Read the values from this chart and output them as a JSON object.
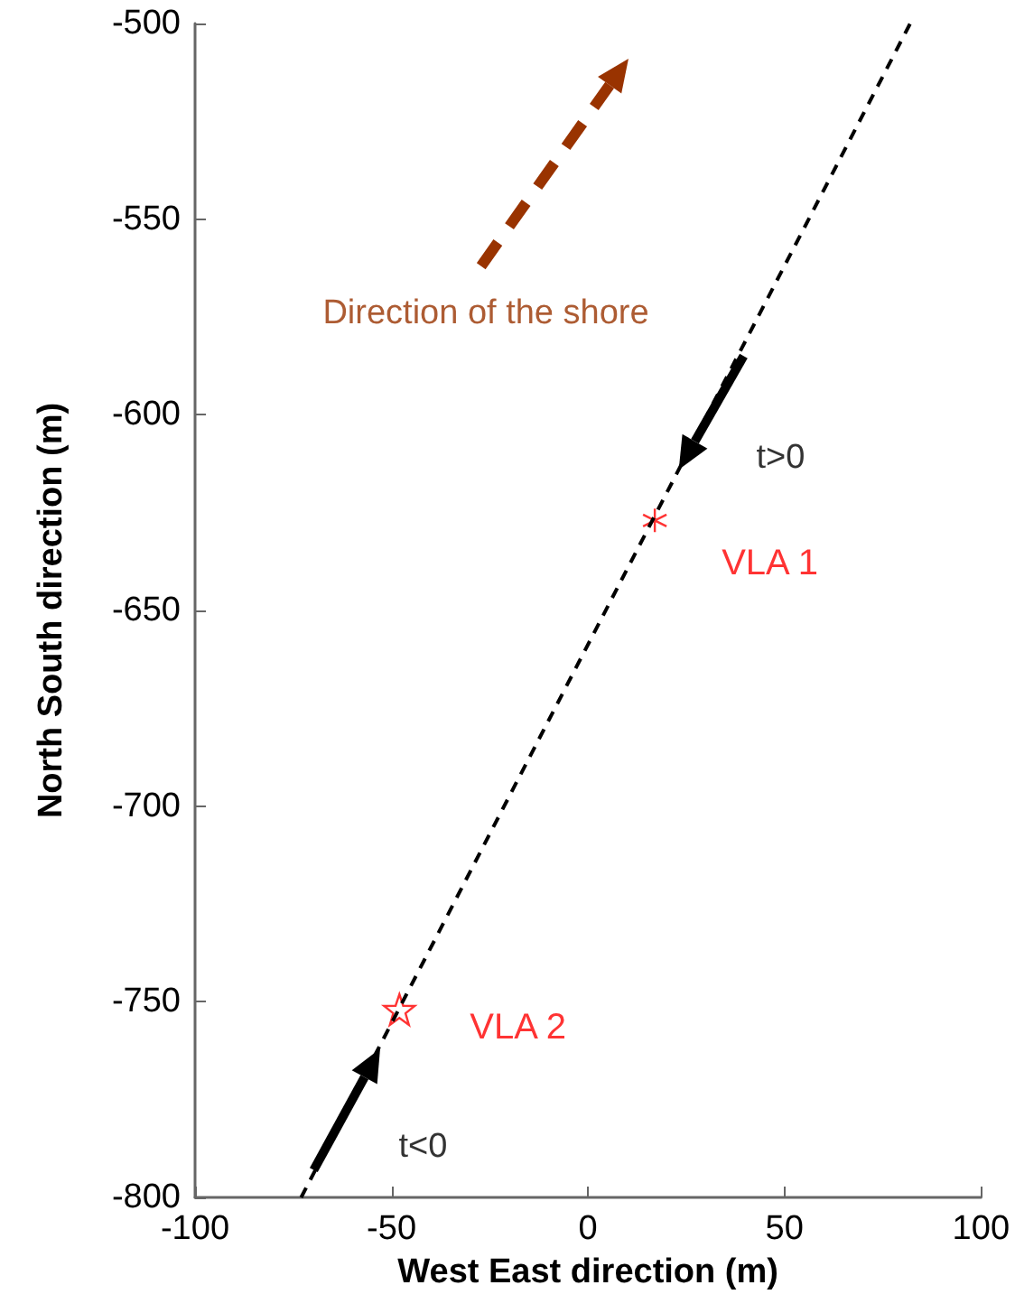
{
  "chart_data": {
    "type": "scatter",
    "xlabel": "West East direction (m)",
    "ylabel": "North South direction (m)",
    "xlim": [
      -100,
      100
    ],
    "xticks": [
      -100,
      -50,
      0,
      50,
      100
    ],
    "ylim": [
      -800,
      -500
    ],
    "yticks": [
      -800,
      -750,
      -700,
      -650,
      -600,
      -550,
      -500
    ],
    "grid": false,
    "legend": false,
    "series": [
      {
        "type": "line",
        "color": "#000000",
        "line_style": "dashed",
        "marker": "none",
        "x": [
          -73,
          82
        ],
        "values": [
          -800,
          -500
        ]
      },
      {
        "name": "VLA 1",
        "color": "#ff0000",
        "marker": "cross",
        "x": [
          17
        ],
        "values": [
          -627
        ]
      },
      {
        "name": "VLA 2",
        "color": "#ff0000",
        "marker": "star",
        "x": [
          -48
        ],
        "values": [
          -752
        ]
      }
    ],
    "annotations": [
      "Direction of the shore",
      "t>0",
      "t<0"
    ]
  }
}
